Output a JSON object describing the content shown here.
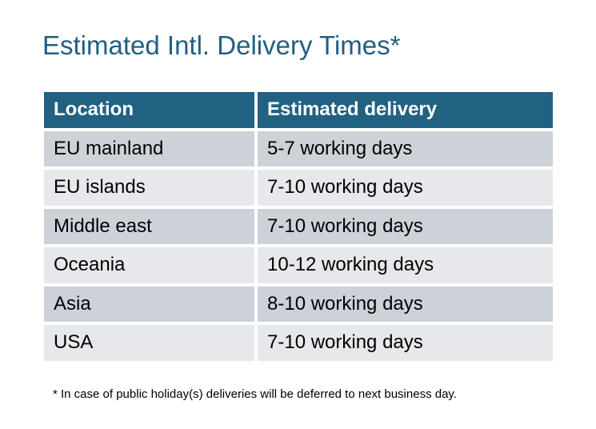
{
  "title": "Estimated Intl. Delivery Times*",
  "table": {
    "headers": [
      "Location",
      "Estimated delivery"
    ],
    "rows": [
      [
        "EU mainland",
        "5-7 working days"
      ],
      [
        "EU islands",
        "7-10 working days"
      ],
      [
        "Middle east",
        "7-10 working days"
      ],
      [
        "Oceania",
        "10-12 working days"
      ],
      [
        "Asia",
        "8-10 working days"
      ],
      [
        "USA",
        "7-10 working days"
      ]
    ]
  },
  "footnote": "* In case of public holiday(s) deliveries will be deferred to next business day.",
  "colors": {
    "header": "#216182",
    "title": "#205f80",
    "row_dark": "#cdd2d9",
    "row_light": "#e6e8eb"
  }
}
